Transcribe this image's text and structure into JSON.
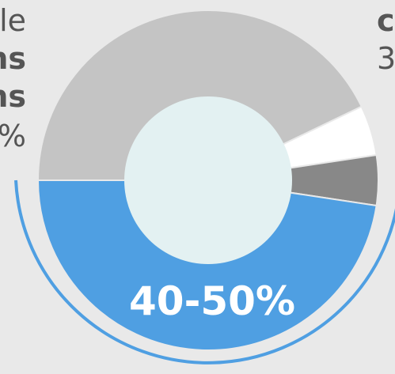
{
  "chart_data": {
    "type": "pie",
    "style": "donut",
    "segments": [
      {
        "label": "",
        "value": 45,
        "color": "#c4c4c4"
      },
      {
        "label": "",
        "value": 5,
        "color": "#ffffff"
      },
      {
        "label": "",
        "value": 5,
        "color": "#888888"
      },
      {
        "label": "40-50%",
        "value": 50,
        "color": "#4f9fe2"
      }
    ],
    "center_label": "40-50%",
    "hole_color": "#e3f1f2",
    "outer_arc_color": "#4f9fe2",
    "background": "#e9e9e9"
  },
  "left_text_fragments": [
    "le",
    "ns",
    "ns",
    "%"
  ],
  "right_text_fragments": [
    "c",
    "3"
  ]
}
